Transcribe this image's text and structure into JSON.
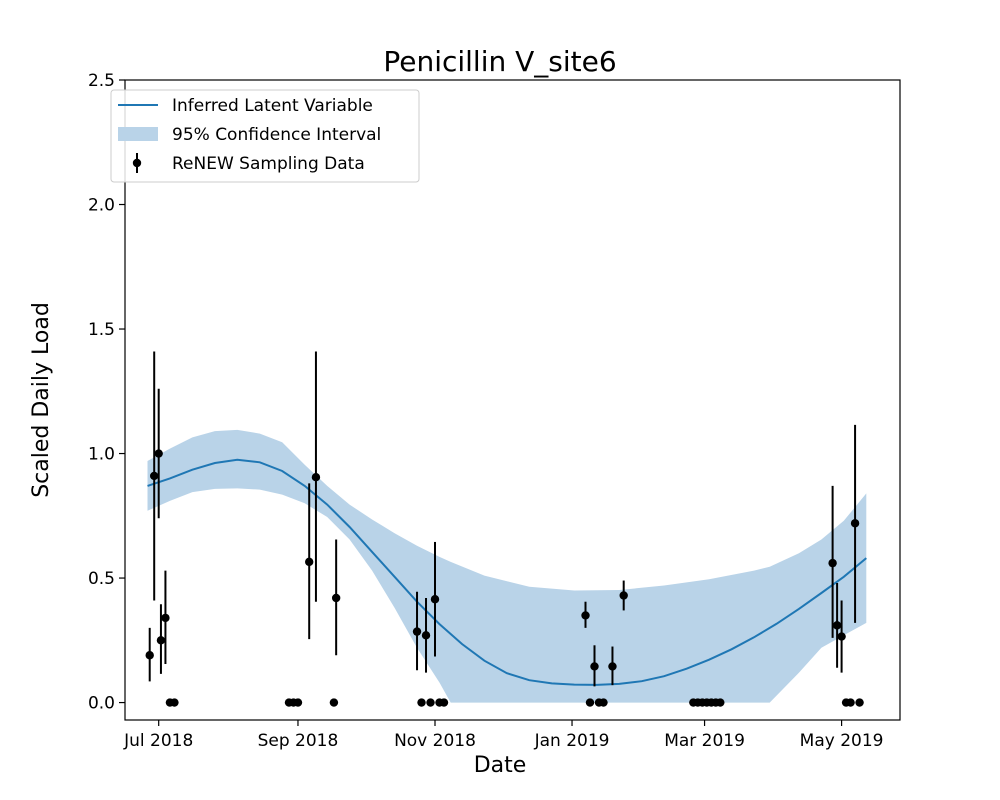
{
  "chart_data": {
    "type": "line",
    "title": "Penicillin V_site6",
    "xlabel": "Date",
    "ylabel": "Scaled Daily Load",
    "xlim": [
      "2018-06-16",
      "2019-05-27"
    ],
    "ylim": [
      -0.07,
      2.5
    ],
    "x_ticks": [
      {
        "date": "2018-07-01",
        "label": "Jul 2018"
      },
      {
        "date": "2018-09-01",
        "label": "Sep 2018"
      },
      {
        "date": "2018-11-01",
        "label": "Nov 2018"
      },
      {
        "date": "2019-01-01",
        "label": "Jan 2019"
      },
      {
        "date": "2019-03-01",
        "label": "Mar 2019"
      },
      {
        "date": "2019-05-01",
        "label": "May 2019"
      }
    ],
    "y_ticks": [
      {
        "value": 0.0,
        "label": "0.0"
      },
      {
        "value": 0.5,
        "label": "0.5"
      },
      {
        "value": 1.0,
        "label": "1.0"
      },
      {
        "value": 1.5,
        "label": "1.5"
      },
      {
        "value": 2.0,
        "label": "2.0"
      },
      {
        "value": 2.5,
        "label": "2.5"
      }
    ],
    "grid": false,
    "legend_position": "top-left",
    "legend": [
      {
        "label": "Inferred Latent Variable",
        "kind": "line"
      },
      {
        "label": "95% Confidence Interval",
        "kind": "band"
      },
      {
        "label": "ReNEW Sampling Data",
        "kind": "errorbar"
      }
    ],
    "colors": {
      "line": "#1f77b4",
      "band": "#b9d3e8",
      "points": "#000000"
    },
    "series": [
      {
        "name": "Inferred Latent Variable",
        "kind": "line",
        "points": [
          [
            "2018-06-26",
            0.87
          ],
          [
            "2018-07-06",
            0.9
          ],
          [
            "2018-07-16",
            0.935
          ],
          [
            "2018-07-26",
            0.962
          ],
          [
            "2018-08-05",
            0.975
          ],
          [
            "2018-08-15",
            0.965
          ],
          [
            "2018-08-25",
            0.93
          ],
          [
            "2018-09-04",
            0.87
          ],
          [
            "2018-09-14",
            0.795
          ],
          [
            "2018-09-24",
            0.705
          ],
          [
            "2018-10-04",
            0.605
          ],
          [
            "2018-10-14",
            0.505
          ],
          [
            "2018-10-24",
            0.405
          ],
          [
            "2018-11-03",
            0.315
          ],
          [
            "2018-11-13",
            0.235
          ],
          [
            "2018-11-23",
            0.168
          ],
          [
            "2018-12-03",
            0.118
          ],
          [
            "2018-12-13",
            0.09
          ],
          [
            "2018-12-23",
            0.077
          ],
          [
            "2019-01-02",
            0.072
          ],
          [
            "2019-01-12",
            0.071
          ],
          [
            "2019-01-22",
            0.075
          ],
          [
            "2019-02-01",
            0.086
          ],
          [
            "2019-02-11",
            0.106
          ],
          [
            "2019-02-21",
            0.136
          ],
          [
            "2019-03-03",
            0.172
          ],
          [
            "2019-03-13",
            0.214
          ],
          [
            "2019-03-23",
            0.262
          ],
          [
            "2019-04-02",
            0.316
          ],
          [
            "2019-04-12",
            0.376
          ],
          [
            "2019-04-22",
            0.44
          ],
          [
            "2019-05-02",
            0.505
          ],
          [
            "2019-05-12",
            0.58
          ]
        ]
      },
      {
        "name": "95% Confidence Interval",
        "kind": "band",
        "points": [
          [
            "2018-06-26",
            0.77,
            0.97
          ],
          [
            "2018-07-06",
            0.81,
            1.02
          ],
          [
            "2018-07-16",
            0.845,
            1.065
          ],
          [
            "2018-07-26",
            0.858,
            1.09
          ],
          [
            "2018-08-05",
            0.86,
            1.095
          ],
          [
            "2018-08-15",
            0.855,
            1.08
          ],
          [
            "2018-08-25",
            0.835,
            1.045
          ],
          [
            "2018-09-04",
            0.8,
            0.955
          ],
          [
            "2018-09-14",
            0.745,
            0.87
          ],
          [
            "2018-09-24",
            0.655,
            0.795
          ],
          [
            "2018-10-04",
            0.53,
            0.735
          ],
          [
            "2018-10-14",
            0.38,
            0.68
          ],
          [
            "2018-10-24",
            0.22,
            0.63
          ],
          [
            "2018-11-03",
            0.08,
            0.585
          ],
          [
            "2018-11-08",
            0.0,
            0.565
          ],
          [
            "2018-11-23",
            0.0,
            0.51
          ],
          [
            "2018-12-13",
            0.0,
            0.465
          ],
          [
            "2019-01-02",
            0.0,
            0.45
          ],
          [
            "2019-01-22",
            0.0,
            0.452
          ],
          [
            "2019-02-11",
            0.0,
            0.47
          ],
          [
            "2019-03-03",
            0.0,
            0.495
          ],
          [
            "2019-03-23",
            0.0,
            0.53
          ],
          [
            "2019-03-30",
            0.0,
            0.545
          ],
          [
            "2019-04-12",
            0.12,
            0.6
          ],
          [
            "2019-04-22",
            0.22,
            0.655
          ],
          [
            "2019-05-02",
            0.27,
            0.73
          ],
          [
            "2019-05-12",
            0.32,
            0.84
          ]
        ]
      },
      {
        "name": "ReNEW Sampling Data",
        "kind": "errorbar",
        "points": [
          {
            "x": "2018-06-27",
            "y": 0.19,
            "low": 0.085,
            "high": 0.3
          },
          {
            "x": "2018-06-29",
            "y": 0.91,
            "low": 0.41,
            "high": 1.41
          },
          {
            "x": "2018-07-01",
            "y": 1.0,
            "low": 0.74,
            "high": 1.26
          },
          {
            "x": "2018-07-02",
            "y": 0.25,
            "low": 0.115,
            "high": 0.395
          },
          {
            "x": "2018-07-04",
            "y": 0.34,
            "low": 0.155,
            "high": 0.53
          },
          {
            "x": "2018-07-06",
            "y": 0.0
          },
          {
            "x": "2018-07-08",
            "y": 0.0
          },
          {
            "x": "2018-08-28",
            "y": 0.0
          },
          {
            "x": "2018-08-30",
            "y": 0.0
          },
          {
            "x": "2018-09-01",
            "y": 0.0
          },
          {
            "x": "2018-09-06",
            "y": 0.565,
            "low": 0.255,
            "high": 0.88
          },
          {
            "x": "2018-09-09",
            "y": 0.905,
            "low": 0.405,
            "high": 1.41
          },
          {
            "x": "2018-09-17",
            "y": 0.0
          },
          {
            "x": "2018-09-18",
            "y": 0.42,
            "low": 0.19,
            "high": 0.655
          },
          {
            "x": "2018-10-24",
            "y": 0.285,
            "low": 0.13,
            "high": 0.445
          },
          {
            "x": "2018-10-26",
            "y": 0.0
          },
          {
            "x": "2018-10-28",
            "y": 0.27,
            "low": 0.12,
            "high": 0.42
          },
          {
            "x": "2018-10-30",
            "y": 0.0
          },
          {
            "x": "2018-11-01",
            "y": 0.415,
            "low": 0.185,
            "high": 0.645
          },
          {
            "x": "2018-11-03",
            "y": 0.0
          },
          {
            "x": "2018-11-05",
            "y": 0.0
          },
          {
            "x": "2019-01-07",
            "y": 0.35,
            "low": 0.3,
            "high": 0.405
          },
          {
            "x": "2019-01-09",
            "y": 0.0
          },
          {
            "x": "2019-01-11",
            "y": 0.145,
            "low": 0.065,
            "high": 0.23
          },
          {
            "x": "2019-01-13",
            "y": 0.0
          },
          {
            "x": "2019-01-15",
            "y": 0.0
          },
          {
            "x": "2019-01-19",
            "y": 0.145,
            "low": 0.07,
            "high": 0.225
          },
          {
            "x": "2019-01-24",
            "y": 0.43,
            "low": 0.37,
            "high": 0.49
          },
          {
            "x": "2019-02-24",
            "y": 0.0
          },
          {
            "x": "2019-02-26",
            "y": 0.0
          },
          {
            "x": "2019-02-28",
            "y": 0.0
          },
          {
            "x": "2019-03-02",
            "y": 0.0
          },
          {
            "x": "2019-03-04",
            "y": 0.0
          },
          {
            "x": "2019-03-06",
            "y": 0.0
          },
          {
            "x": "2019-03-08",
            "y": 0.0
          },
          {
            "x": "2019-04-27",
            "y": 0.56,
            "low": 0.26,
            "high": 0.87
          },
          {
            "x": "2019-04-29",
            "y": 0.31,
            "low": 0.14,
            "high": 0.48
          },
          {
            "x": "2019-05-01",
            "y": 0.265,
            "low": 0.12,
            "high": 0.41
          },
          {
            "x": "2019-05-03",
            "y": 0.0
          },
          {
            "x": "2019-05-05",
            "y": 0.0
          },
          {
            "x": "2019-05-07",
            "y": 0.72,
            "low": 0.32,
            "high": 1.115
          },
          {
            "x": "2019-05-09",
            "y": 0.0
          }
        ]
      }
    ]
  }
}
